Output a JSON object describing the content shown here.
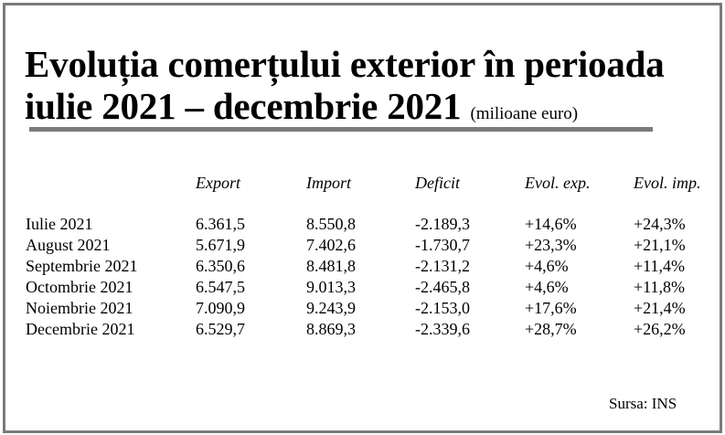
{
  "title": {
    "line1": "Evoluția comerțului exterior în perioada",
    "line2": "iulie 2021 – decembrie 2021",
    "unit": "(milioane euro)"
  },
  "columns": [
    "Export",
    "Import",
    "Deficit",
    "Evol. exp.",
    "Evol. imp."
  ],
  "rows": [
    {
      "month": "Iulie 2021",
      "export": "6.361,5",
      "import": "8.550,8",
      "deficit": "-2.189,3",
      "evol_exp": "+14,6%",
      "evol_imp": "+24,3%"
    },
    {
      "month": "August 2021",
      "export": "5.671,9",
      "import": "7.402,6",
      "deficit": "-1.730,7",
      "evol_exp": "+23,3%",
      "evol_imp": "+21,1%"
    },
    {
      "month": "Septembrie 2021",
      "export": "6.350,6",
      "import": "8.481,8",
      "deficit": "-2.131,2",
      "evol_exp": "+4,6%",
      "evol_imp": "+11,4%"
    },
    {
      "month": "Octombrie 2021",
      "export": "6.547,5",
      "import": "9.013,3",
      "deficit": "-2.465,8",
      "evol_exp": "+4,6%",
      "evol_imp": "+11,8%"
    },
    {
      "month": "Noiembrie 2021",
      "export": "7.090,9",
      "import": "9.243,9",
      "deficit": "-2.153,0",
      "evol_exp": "+17,6%",
      "evol_imp": "+21,4%"
    },
    {
      "month": "Decembrie 2021",
      "export": "6.529,7",
      "import": "8.869,3",
      "deficit": "-2.339,6",
      "evol_exp": "+28,7%",
      "evol_imp": "+26,2%"
    }
  ],
  "source": "Sursa: INS",
  "colors": {
    "frame": "#7a7a7a",
    "rule": "#7a7a7a",
    "text": "#000000"
  }
}
